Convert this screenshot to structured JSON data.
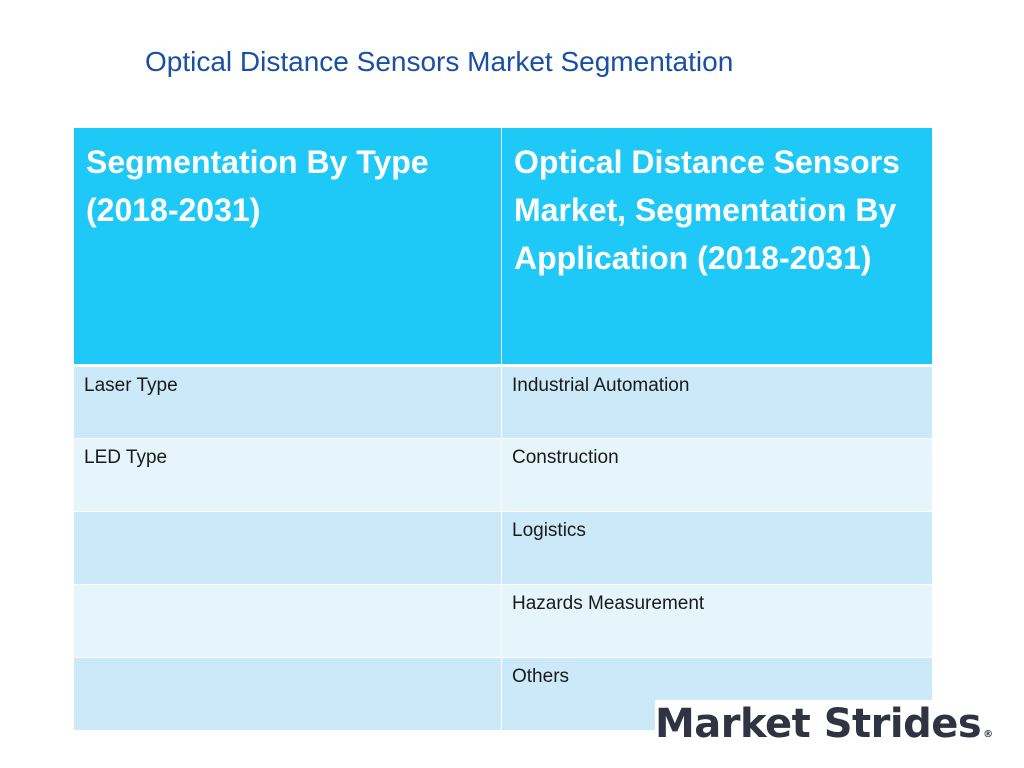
{
  "title": "Optical Distance Sensors Market Segmentation",
  "table": {
    "headers": [
      "Segmentation By Type (2018-2031)",
      "Optical Distance Sensors Market, Segmentation By Application (2018-2031)"
    ],
    "rows": [
      [
        "Laser Type",
        "Industrial Automation"
      ],
      [
        "LED Type",
        "Construction"
      ],
      [
        "",
        "Logistics"
      ],
      [
        "",
        "Hazards Measurement"
      ],
      [
        "",
        "Others"
      ]
    ]
  },
  "logo": {
    "text": "Market Strides",
    "mark": "®"
  },
  "colors": {
    "title": "#1a4fa3",
    "header_bg": "#1ec8f7",
    "row_dark": "#cce9f9",
    "row_light": "#e6f4fc",
    "logo_text": "#2f3342"
  }
}
